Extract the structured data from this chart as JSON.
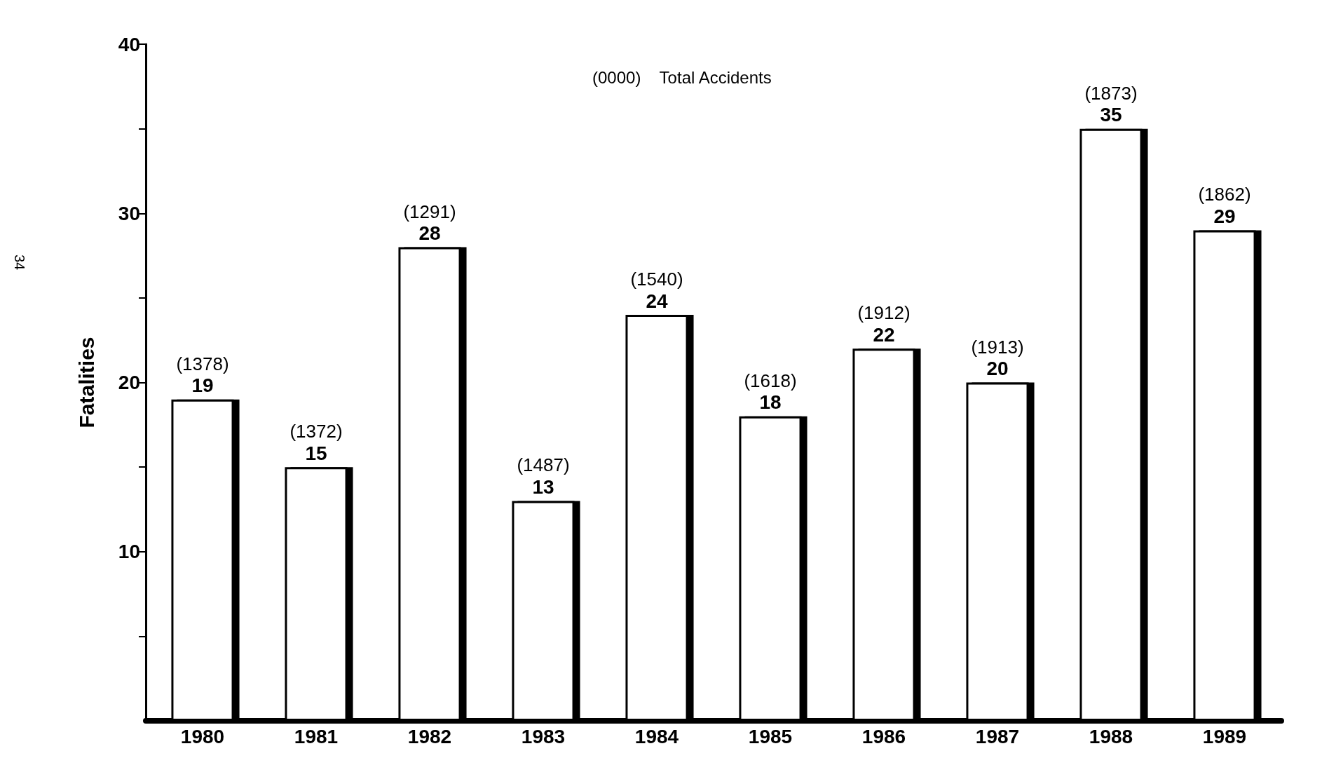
{
  "chart_data": {
    "type": "bar",
    "ylabel": "Fatalities",
    "categories": [
      "1980",
      "1981",
      "1982",
      "1983",
      "1984",
      "1985",
      "1986",
      "1987",
      "1988",
      "1989"
    ],
    "values": [
      19,
      15,
      28,
      13,
      24,
      18,
      22,
      20,
      35,
      29
    ],
    "value_labels": [
      "(1378)\n19",
      "(1372)\n15",
      "(1291)\n28",
      "(1487)\n13",
      "(1540)\n24",
      "(1618)\n18",
      "(1912)\n22",
      "(1913)\n20",
      "(1873)\n35",
      "(1862)\n29"
    ],
    "color": "#ffffff",
    "ylim": [
      0,
      40
    ],
    "yticks": [
      {
        "value": 5,
        "label": null
      },
      10,
      {
        "value": 15,
        "label": null
      },
      20,
      {
        "value": 25,
        "label": null
      },
      30,
      {
        "value": 35,
        "label": null
      },
      40
    ],
    "grid": false,
    "annotations": [
      "(0000)    Total Accidents",
      "34"
    ]
  }
}
